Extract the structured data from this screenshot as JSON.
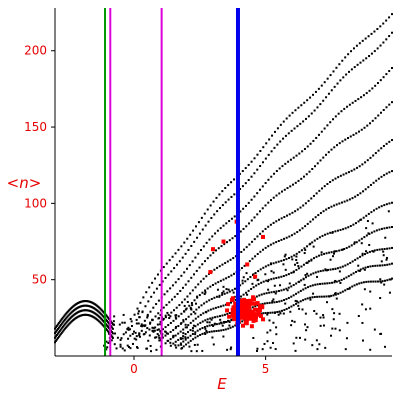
{
  "chart_data": {
    "type": "scatter",
    "xlabel": "E",
    "ylabel": "<n>",
    "xlim": [
      -3.0,
      9.8
    ],
    "ylim": [
      0,
      228
    ],
    "x_ticks": [
      {
        "value": 0,
        "label": "0"
      },
      {
        "value": 5,
        "label": "5"
      }
    ],
    "y_ticks": [
      {
        "value": 50,
        "label": "50"
      },
      {
        "value": 100,
        "label": "100"
      },
      {
        "value": 150,
        "label": "150"
      },
      {
        "value": 200,
        "label": "200"
      }
    ],
    "grid": false,
    "colors": {
      "axis_text": "#e60000",
      "black_points": "#000000",
      "red_points": "#ff0000",
      "line_green": "#009900",
      "line_magenta": "#dd00dd",
      "line_blue": "#0000ee"
    },
    "vertical_lines": [
      {
        "x": -1.1,
        "color": "#009900",
        "width_class": "thin"
      },
      {
        "x": -0.9,
        "color": "#dd00dd",
        "width_class": "thin"
      },
      {
        "x": 1.05,
        "color": "#dd00dd",
        "width_class": "thin"
      },
      {
        "x": 3.95,
        "color": "#0000ee",
        "width_class": "thick"
      }
    ],
    "curves": [
      {
        "name": "",
        "start": [
          -0.2,
          18
        ],
        "end": [
          9.8,
          225
        ]
      },
      {
        "name": "",
        "start": [
          0.0,
          16
        ],
        "end": [
          9.8,
          212
        ]
      },
      {
        "name": "",
        "start": [
          0.2,
          14
        ],
        "end": [
          9.8,
          188
        ]
      },
      {
        "name": "",
        "start": [
          0.4,
          13
        ],
        "end": [
          9.8,
          165
        ]
      },
      {
        "name": "",
        "start": [
          0.6,
          12
        ],
        "end": [
          9.8,
          140
        ]
      },
      {
        "name": "",
        "start": [
          0.8,
          11
        ],
        "end": [
          9.8,
          120
        ]
      },
      {
        "name": "",
        "start": [
          1.0,
          10
        ],
        "end": [
          9.8,
          100
        ]
      },
      {
        "name": "",
        "start": [
          1.2,
          9
        ],
        "end": [
          9.8,
          85
        ]
      },
      {
        "name": "",
        "start": [
          1.4,
          8
        ],
        "end": [
          9.8,
          72
        ]
      },
      {
        "name": "",
        "start": [
          1.6,
          7
        ],
        "end": [
          9.8,
          62
        ]
      },
      {
        "name": "",
        "start": [
          1.8,
          6
        ],
        "end": [
          9.8,
          52
        ]
      }
    ],
    "low_energy_cluster": {
      "x_range": [
        -3.0,
        -0.8
      ],
      "y_range": [
        18,
        36
      ]
    },
    "red_cluster": {
      "x_center": 4.2,
      "y_center": 30,
      "x_spread": 0.9,
      "y_spread": 8,
      "count": 150,
      "outliers": [
        [
          3.4,
          75
        ],
        [
          4.9,
          78
        ],
        [
          3.0,
          70
        ],
        [
          4.3,
          60
        ],
        [
          2.9,
          55
        ],
        [
          3.9,
          88
        ],
        [
          4.6,
          52
        ]
      ]
    }
  }
}
